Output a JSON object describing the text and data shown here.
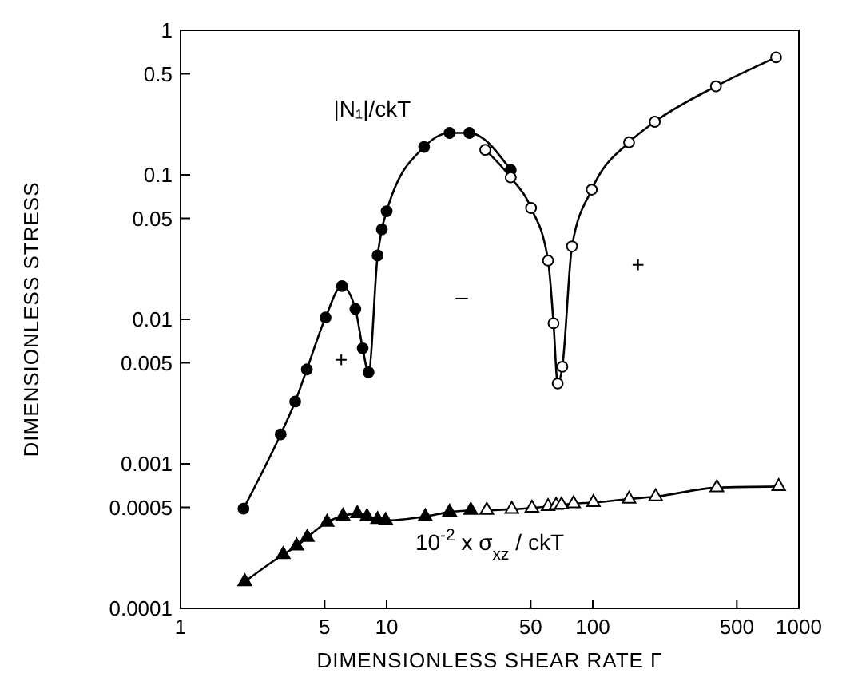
{
  "chart_data": {
    "type": "line",
    "xlabel": "DIMENSIONLESS SHEAR RATE Γ",
    "ylabel": "DIMENSIONLESS STRESS",
    "log": "xy",
    "grid": false,
    "line_style": "solid",
    "xlim": [
      1,
      1000
    ],
    "xticks": [
      1,
      5,
      10,
      50,
      100,
      500,
      1000
    ],
    "ylim": [
      0.0001,
      1
    ],
    "yticks": [
      0.0001,
      0.0005,
      0.001,
      0.005,
      0.01,
      0.05,
      0.1,
      0.5,
      1
    ],
    "series": [
      {
        "color": "#000000",
        "marker": "circle",
        "x": [
          2.02,
          3.06,
          3.6,
          4.1,
          5.05,
          6.07,
          7.05,
          7.65,
          8.17,
          9.04,
          9.48,
          10,
          15.2,
          20.2,
          25.2,
          40
        ],
        "values": [
          0.00049,
          0.0016,
          0.0027,
          0.0045,
          0.0103,
          0.017,
          0.0118,
          0.0063,
          0.0043,
          0.0277,
          0.042,
          0.056,
          0.156,
          0.195,
          0.195,
          0.108
        ]
      },
      {
        "color": "#ffffff",
        "marker": "circle",
        "x": [
          30.1,
          40,
          50.2,
          60.7,
          64.5,
          67.6,
          71.2,
          79.3,
          98.9,
          150,
          200,
          396,
          775
        ],
        "values": [
          0.149,
          0.096,
          0.059,
          0.0255,
          0.0094,
          0.0036,
          0.0047,
          0.032,
          0.079,
          0.168,
          0.233,
          0.41,
          0.65
        ]
      },
      {
        "color": "#000000",
        "marker": "triangle",
        "x": [
          2.05,
          3.15,
          3.66,
          4.12,
          5.14,
          6.14,
          7.21,
          8.03,
          9.04,
          9.89,
          15.4,
          20.2,
          25.6
        ],
        "values": [
          0.000153,
          0.000236,
          0.00027,
          0.00031,
          0.000395,
          0.000436,
          0.000452,
          0.000432,
          0.000413,
          0.000406,
          0.000432,
          0.000464,
          0.000477
        ]
      },
      {
        "color": "#ffffff",
        "marker": "triangle",
        "x": [
          30.6,
          40.5,
          50.7,
          60.7,
          66.4,
          70.5,
          80.7,
          100.7,
          150,
          202,
          400,
          798
        ],
        "values": [
          0.000477,
          0.000485,
          0.000495,
          0.000508,
          0.000517,
          0.00052,
          0.000531,
          0.00054,
          0.000571,
          0.000593,
          0.000684,
          0.000697
        ]
      }
    ],
    "annotations": [
      "|N₁|/ckT",
      "10$^{-2}$ x σ$_{xz}$ / ckT",
      "+",
      "–",
      "+"
    ]
  }
}
